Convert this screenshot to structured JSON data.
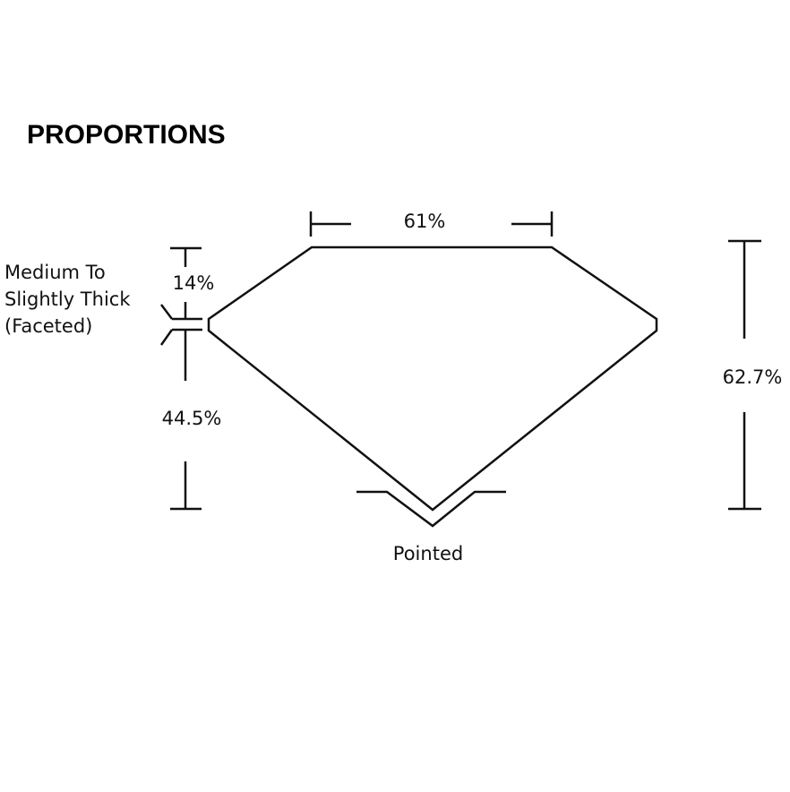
{
  "title": "PROPORTIONS",
  "labels": {
    "table": "61%",
    "crown": "14%",
    "pavilion": "44.5%",
    "depth": "62.7%",
    "girdle_line1": "Medium To",
    "girdle_line2": "Slightly Thick",
    "girdle_line3": "(Faceted)",
    "culet": "Pointed"
  },
  "colors": {
    "line": "#111111",
    "background": "#ffffff"
  }
}
